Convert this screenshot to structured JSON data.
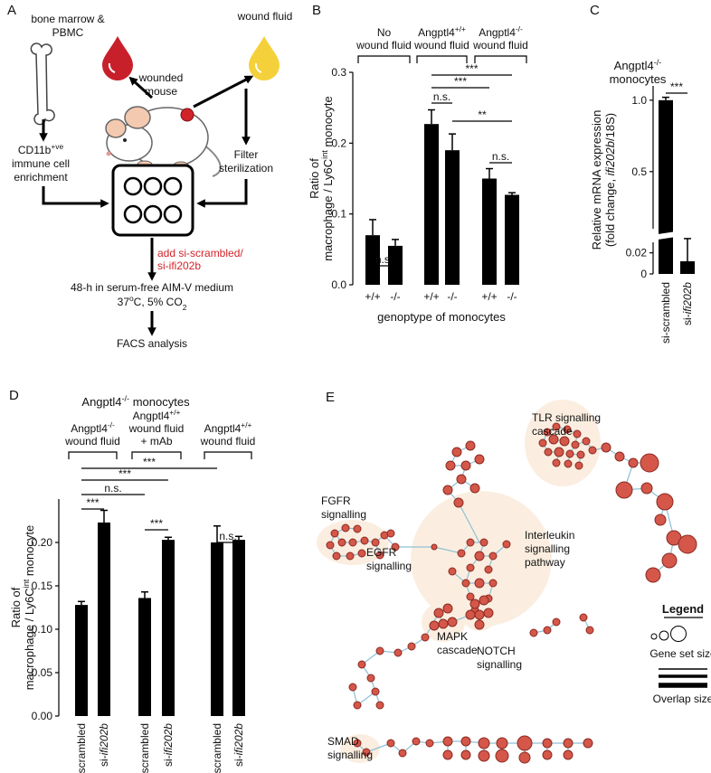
{
  "panel_a": {
    "letter": "A",
    "labels": {
      "bone_marrow": [
        "bone marrow &",
        "PBMC"
      ],
      "mouse": [
        "wounded",
        "mouse"
      ],
      "wound_fluid": "wound fluid",
      "enrichment": [
        [
          "CD11b",
          {
            "sup": "+ve"
          }
        ],
        "immune cell",
        "enrichment"
      ],
      "filter": [
        "Filter",
        "sterilization"
      ],
      "add": [
        "add si-scrambled/",
        "si-ifi202b"
      ],
      "culture": [
        "48-h in serum-free AIM-V medium",
        [
          "37",
          {
            "sup": "o"
          },
          "C, 5% CO",
          {
            "sub": "2"
          }
        ]
      ],
      "facs": "FACS analysis"
    }
  },
  "chart_data": [
    {
      "letter": "B",
      "type": "bar",
      "ylabel": [
        "Ratio of",
        [
          "macrophage / Ly6C",
          {
            "sup": "int"
          },
          " monocyte"
        ]
      ],
      "xlabel": "genoptype of monocytes",
      "categories": [
        "+/+",
        "-/-",
        "+/+",
        "-/-",
        "+/+",
        "-/-"
      ],
      "values": [
        0.07,
        0.055,
        0.227,
        0.19,
        0.15,
        0.127
      ],
      "errors": [
        0.022,
        0.009,
        0.02,
        0.023,
        0.014,
        0.003
      ],
      "color": "#000000",
      "ylim": [
        0,
        0.3
      ],
      "yticks": [
        {
          "value": 0,
          "label": "0.0"
        },
        0.1,
        0.2,
        0.3
      ],
      "groups": [
        {
          "label": [
            "No",
            "wound fluid"
          ],
          "from": 0,
          "to": 1
        },
        {
          "label": [
            [
              "Angptl4",
              {
                "sup": "+/+"
              }
            ],
            "wound fluid"
          ],
          "from": 2,
          "to": 3
        },
        {
          "label": [
            [
              "Angptl4",
              {
                "sup": "-/-"
              }
            ],
            "wound fluid"
          ],
          "from": 4,
          "to": 5
        }
      ],
      "annotations": [
        {
          "text": "n.s.",
          "from": 0,
          "to": 1
        },
        {
          "text": "n.s.",
          "from": 2,
          "to": 3
        },
        {
          "text": "***",
          "from": 2,
          "to": 5
        },
        {
          "text": "***",
          "from": 2,
          "to": 4
        },
        {
          "text": "**",
          "from": 3,
          "to": 5
        },
        {
          "text": "n.s.",
          "from": 4,
          "to": 5
        }
      ]
    },
    {
      "letter": "C",
      "type": "broken_bar",
      "title": [
        [
          "Angptl4",
          {
            "sup": "-/-"
          }
        ],
        "monocytes"
      ],
      "ylabel": [
        "Relative mRNA expression",
        [
          "(fold change, ",
          {
            "i": "ifi202b"
          },
          "/18S)"
        ]
      ],
      "categories": [
        "si-scrambled",
        [
          "si-",
          {
            "i": "ifi202b"
          }
        ]
      ],
      "values": [
        1,
        0.012
      ],
      "errors": [
        0.02,
        0.019
      ],
      "color": "#000000",
      "y_segments": [
        {
          "ylim": [
            0,
            0.03
          ],
          "yticks": [
            0,
            0.02
          ]
        },
        {
          "ylim": [
            0.1,
            1.1
          ],
          "yticks": [
            0.5,
            {
              "value": 1,
              "label": "1.0"
            }
          ]
        }
      ],
      "annotations": [
        {
          "text": "***",
          "from": 0,
          "to": 1
        }
      ]
    },
    {
      "letter": "D",
      "type": "bar",
      "title": [
        [
          "Angptl4",
          {
            "sup": "-/-"
          },
          " monocytes"
        ]
      ],
      "ylabel": [
        "Ratio of",
        [
          "macrophage / Ly6C",
          {
            "sup": "int"
          },
          " monocyte"
        ]
      ],
      "categories": [
        "si-scrambled",
        [
          "si-",
          {
            "i": "ifi202b"
          }
        ],
        "si-scrambled",
        [
          "si-",
          {
            "i": "ifi202b"
          }
        ],
        "si-scrambled",
        [
          "si-",
          {
            "i": "ifi202b"
          }
        ]
      ],
      "values": [
        0.128,
        0.223,
        0.136,
        0.203,
        0.2,
        0.203
      ],
      "errors": [
        0.004,
        0.014,
        0.007,
        0.003,
        0.019,
        0.004
      ],
      "color": "#000000",
      "ylim": [
        0,
        0.25
      ],
      "yticks": [
        {
          "value": 0,
          "label": "0.00"
        },
        0.05,
        {
          "value": 0.1,
          "label": "0.10"
        },
        0.15,
        {
          "value": 0.2,
          "label": "0.20"
        }
      ],
      "groups": [
        {
          "label": [
            [
              "Angptl4",
              {
                "sup": "-/-"
              }
            ],
            "wound fluid"
          ],
          "from": 0,
          "to": 1
        },
        {
          "label": [
            [
              "Angptl4",
              {
                "sup": "+/+"
              }
            ],
            "wound fluid",
            "+ mAb"
          ],
          "from": 2,
          "to": 3
        },
        {
          "label": [
            [
              "Angptl4",
              {
                "sup": "+/+"
              }
            ],
            "wound fluid"
          ],
          "from": 4,
          "to": 5
        }
      ],
      "annotations": [
        {
          "text": "***",
          "from": 0,
          "to": 1
        },
        {
          "text": "n.s.",
          "from": 0,
          "to": 2
        },
        {
          "text": "***",
          "from": 0,
          "to": 3
        },
        {
          "text": "***",
          "from": 0,
          "to": 4
        },
        {
          "text": "***",
          "from": 2,
          "to": 3
        },
        {
          "text": "n.s.",
          "from": 4,
          "to": 5
        }
      ]
    }
  ],
  "panel_e": {
    "letter": "E",
    "labels": [
      [
        "TLR signalling",
        "cascade"
      ],
      [
        "FGFR",
        "signalling"
      ],
      [
        "EGFR",
        "signalling"
      ],
      [
        "Interleukin",
        "signalling",
        "pathway"
      ],
      [
        "MAPK",
        "cascade"
      ],
      [
        "NOTCH",
        "signalling"
      ],
      [
        "SMAD",
        "signalling"
      ]
    ],
    "legend": {
      "title": "Legend",
      "node_size": "Gene set size",
      "edge_size": "Overlap size"
    }
  }
}
